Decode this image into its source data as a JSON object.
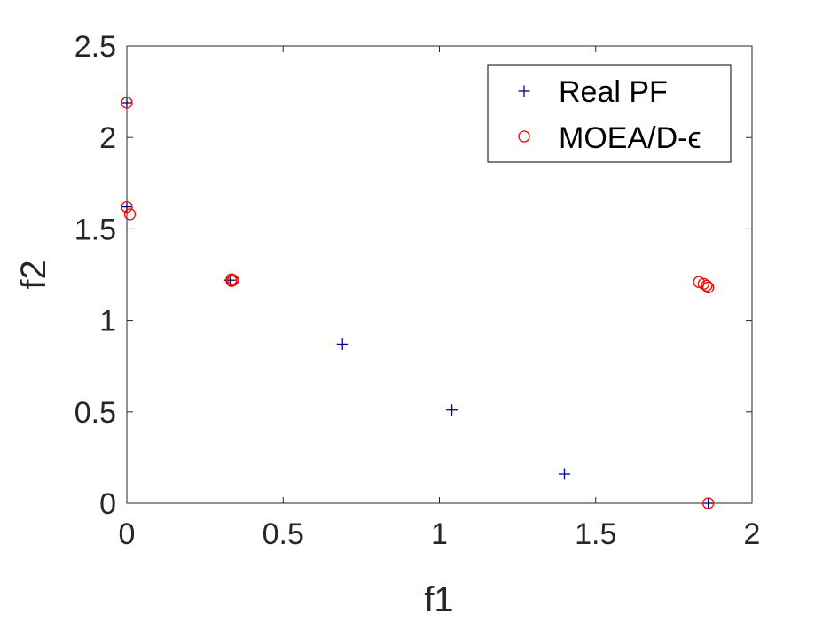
{
  "chart_data": {
    "type": "scatter",
    "xlabel": "f1",
    "ylabel": "f2",
    "xlim": [
      0,
      2
    ],
    "ylim": [
      0,
      2.5
    ],
    "xticks": [
      "0",
      "0.5",
      "1",
      "1.5",
      "2"
    ],
    "yticks": [
      "0",
      "0.5",
      "1",
      "1.5",
      "2",
      "2.5"
    ],
    "xtick_values": [
      0,
      0.5,
      1,
      1.5,
      2
    ],
    "ytick_values": [
      0,
      0.5,
      1,
      1.5,
      2,
      2.5
    ],
    "grid": false,
    "legend_position": "top-right",
    "series": [
      {
        "name": "Real PF",
        "marker": "plus",
        "color": "#00008b",
        "points": [
          [
            0.0,
            2.19
          ],
          [
            0.0,
            1.62
          ],
          [
            0.33,
            1.22
          ],
          [
            0.69,
            0.87
          ],
          [
            1.04,
            0.51
          ],
          [
            1.4,
            0.16
          ],
          [
            1.86,
            0.0
          ]
        ]
      },
      {
        "name": "MOEA/D-ϵ",
        "marker": "circle",
        "color": "#ff0000",
        "points": [
          [
            0.0,
            2.19
          ],
          [
            0.0,
            1.62
          ],
          [
            0.01,
            1.58
          ],
          [
            0.335,
            1.225
          ],
          [
            0.34,
            1.22
          ],
          [
            0.335,
            1.215
          ],
          [
            1.83,
            1.21
          ],
          [
            1.845,
            1.2
          ],
          [
            1.855,
            1.19
          ],
          [
            1.86,
            1.18
          ],
          [
            1.86,
            0.0
          ]
        ]
      }
    ]
  }
}
